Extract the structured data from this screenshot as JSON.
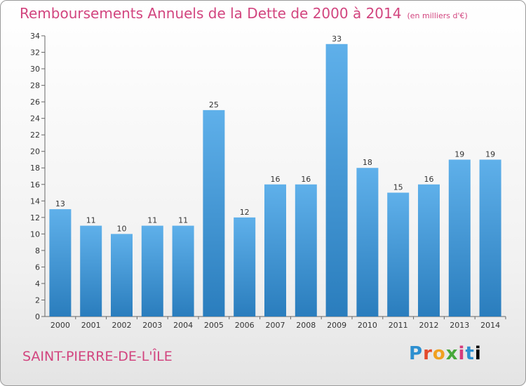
{
  "title": "Remboursements Annuels de la Dette de 2000 à 2014",
  "unit_note": "(en milliers d'€)",
  "city": "SAINT-PIERRE-DE-L'ÎLE",
  "logo": {
    "letters": [
      "P",
      "r",
      "o",
      "x",
      "i",
      "t",
      "i"
    ],
    "text": "Proxiti"
  },
  "colors": {
    "title": "#d2457f",
    "bar_top": "#5fb0ea",
    "bar_bottom": "#2a7dbd"
  },
  "chart_data": {
    "type": "bar",
    "categories": [
      "2000",
      "2001",
      "2002",
      "2003",
      "2004",
      "2005",
      "2006",
      "2007",
      "2008",
      "2009",
      "2010",
      "2011",
      "2012",
      "2013",
      "2014"
    ],
    "values": [
      13,
      11,
      10,
      11,
      11,
      25,
      12,
      16,
      16,
      33,
      18,
      15,
      16,
      19,
      19
    ],
    "title": "Remboursements Annuels de la Dette de 2000 à 2014",
    "ylim": [
      0,
      34
    ],
    "yticks": [
      0,
      2,
      4,
      6,
      8,
      10,
      12,
      14,
      16,
      18,
      20,
      22,
      24,
      26,
      28,
      30,
      32,
      34
    ],
    "grid": false
  }
}
